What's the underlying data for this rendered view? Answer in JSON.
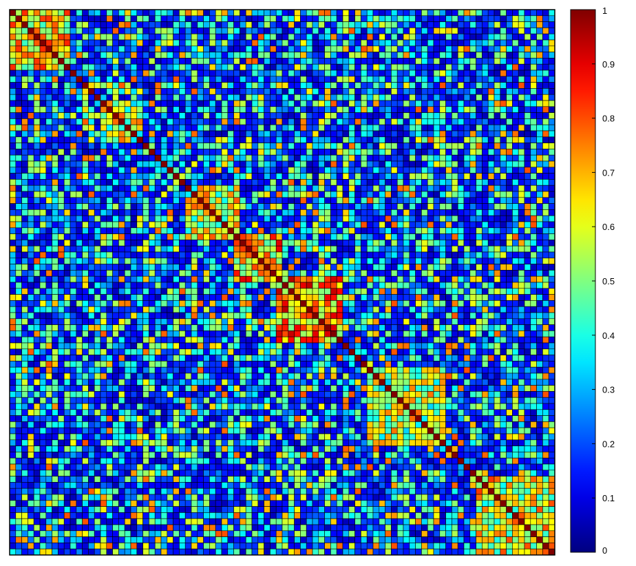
{
  "chart_data": {
    "type": "heatmap",
    "title": "",
    "xlabel": "",
    "ylabel": "",
    "colormap": "jet",
    "value_range": [
      0,
      1
    ],
    "grid_size": 90,
    "diagonal_value": 1.0,
    "blocks": [
      {
        "rows": [
          1,
          10
        ],
        "cols": [
          1,
          10
        ],
        "mean": 0.62
      },
      {
        "rows": [
          16,
          22
        ],
        "cols": [
          16,
          22
        ],
        "mean": 0.55
      },
      {
        "rows": [
          30,
          38
        ],
        "cols": [
          30,
          38
        ],
        "mean": 0.58
      },
      {
        "rows": [
          38,
          45
        ],
        "cols": [
          38,
          45
        ],
        "mean": 0.68
      },
      {
        "rows": [
          45,
          55
        ],
        "cols": [
          45,
          55
        ],
        "mean": 0.72
      },
      {
        "rows": [
          60,
          72
        ],
        "cols": [
          60,
          72
        ],
        "mean": 0.55
      },
      {
        "rows": [
          78,
          90
        ],
        "cols": [
          78,
          90
        ],
        "mean": 0.6
      }
    ],
    "colorbar": {
      "ticks": [
        0,
        0.1,
        0.2,
        0.3,
        0.4,
        0.5,
        0.6,
        0.7,
        0.8,
        0.9,
        1
      ],
      "tick_labels": [
        "0",
        "0.1",
        "0.2",
        "0.3",
        "0.4",
        "0.5",
        "0.6",
        "0.7",
        "0.8",
        "0.9",
        "1"
      ]
    }
  }
}
